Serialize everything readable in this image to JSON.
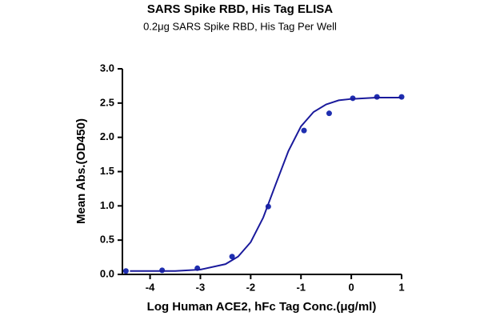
{
  "chart_data": {
    "type": "scatter",
    "title": "SARS Spike RBD, His Tag ELISA",
    "subtitle": "0.2μg SARS Spike RBD, His Tag Per Well",
    "x_label": "Log Human ACE2, hFc Tag Conc.(μg/ml)",
    "y_label": "Mean Abs.(OD450)",
    "xlim": [
      -4.55,
      1
    ],
    "xticks": [
      -4,
      -3,
      -2,
      -1,
      0,
      1
    ],
    "ylim": [
      0,
      3
    ],
    "yticks": [
      {
        "value": 0,
        "label": "0.0"
      },
      {
        "value": 0.5,
        "label": "0.5"
      },
      {
        "value": 1,
        "label": "1.0"
      },
      {
        "value": 1.5,
        "label": "1.5"
      },
      {
        "value": 2,
        "label": "2.0"
      },
      {
        "value": 2.5,
        "label": "2.5"
      },
      {
        "value": 3,
        "label": "3.0"
      }
    ],
    "series": [
      {
        "kind": "points",
        "color": "#1f2fb0",
        "x": [
          -4.48,
          -3.76,
          -3.06,
          -2.37,
          -1.65,
          -0.94,
          -0.44,
          0.03,
          0.51,
          1.0
        ],
        "values": [
          0.05,
          0.06,
          0.09,
          0.26,
          0.99,
          2.1,
          2.35,
          2.57,
          2.59,
          2.59
        ]
      },
      {
        "kind": "line",
        "color": "#1a1a9c",
        "x": [
          -4.4,
          -4,
          -3.5,
          -3,
          -2.5,
          -2.25,
          -2,
          -1.75,
          -1.5,
          -1.25,
          -1,
          -0.75,
          -0.5,
          -0.25,
          0,
          0.5,
          1
        ],
        "values": [
          0.05,
          0.05,
          0.05,
          0.07,
          0.15,
          0.26,
          0.47,
          0.83,
          1.32,
          1.8,
          2.16,
          2.37,
          2.48,
          2.54,
          2.56,
          2.58,
          2.58
        ]
      }
    ]
  }
}
